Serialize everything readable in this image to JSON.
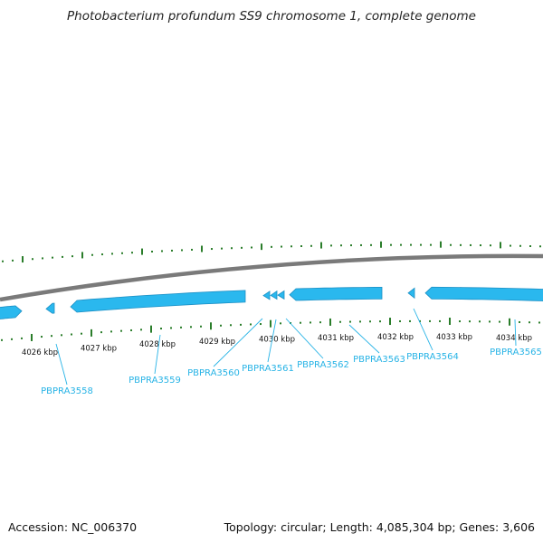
{
  "title": "Photobacterium profundum SS9 chromosome 1, complete genome",
  "footer": {
    "accession": "Accession: NC_006370",
    "summary": "Topology: circular; Length: 4,085,304 bp; Genes: 3,606"
  },
  "colors": {
    "backbone": "#7a7a7a",
    "gene": "#2ab8ee",
    "gene_dark": "#1c8fc4",
    "tick": "#2a7d2a",
    "label": "#27b3e6",
    "leader": "#27b3e6"
  },
  "scale": {
    "labels": [
      "4026 kbp",
      "4027 kbp",
      "4028 kbp",
      "4029 kbp",
      "4030 kbp",
      "4031 kbp",
      "4032 kbp",
      "4033 kbp",
      "4034 kbp"
    ]
  },
  "genes": [
    {
      "label": "PBPRA3558"
    },
    {
      "label": "PBPRA3559"
    },
    {
      "label": "PBPRA3560"
    },
    {
      "label": "PBPRA3561"
    },
    {
      "label": "PBPRA3562"
    },
    {
      "label": "PBPRA3563"
    },
    {
      "label": "PBPRA3564"
    },
    {
      "label": "PBPRA3565"
    }
  ]
}
